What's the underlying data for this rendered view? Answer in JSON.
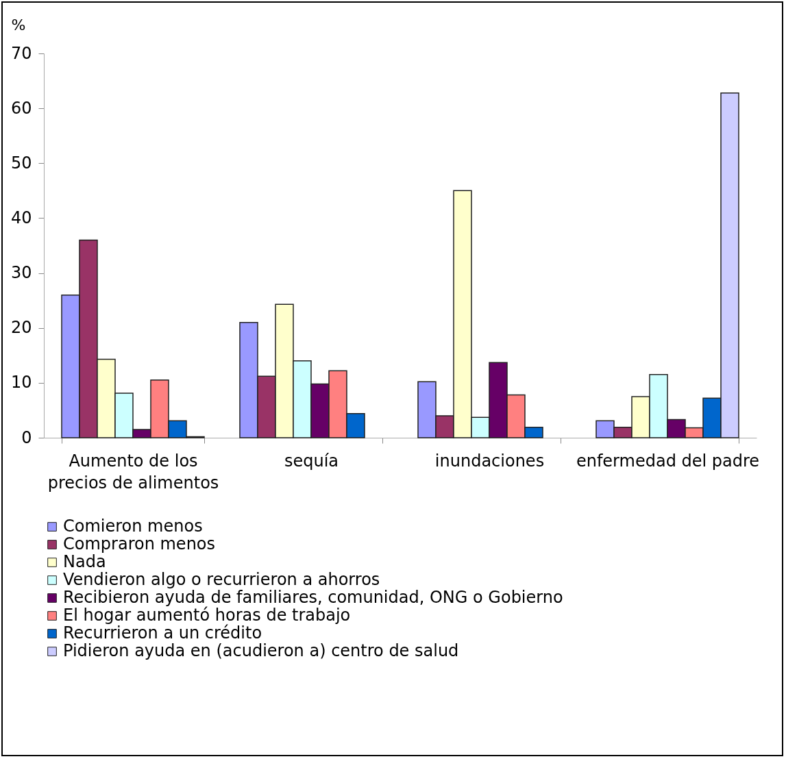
{
  "chart_data": {
    "type": "bar",
    "ylabel": "%",
    "categories": [
      "Aumento de los precios de alimentos",
      "sequía",
      "inundaciones",
      "enfermedad del padre"
    ],
    "series": [
      {
        "name": "Comieron menos",
        "color": "#9999ff",
        "values": [
          26,
          21,
          10.2,
          3.1
        ]
      },
      {
        "name": "Compraron menos",
        "color": "#993366",
        "values": [
          36,
          11.2,
          4,
          1.9
        ]
      },
      {
        "name": "Nada",
        "color": "#ffffcc",
        "values": [
          14.3,
          24.3,
          45,
          7.5
        ]
      },
      {
        "name": "Vendieron algo o recurrieron a ahorros",
        "color": "#ccffff",
        "values": [
          8.1,
          14,
          3.7,
          11.5
        ]
      },
      {
        "name": "Recibieron ayuda de familiares, comunidad, ONG o Gobierno",
        "color": "#660066",
        "values": [
          1.5,
          9.8,
          13.7,
          3.3
        ]
      },
      {
        "name": "El hogar aumentó horas de trabajo",
        "color": "#ff8080",
        "values": [
          10.5,
          12.2,
          7.8,
          1.8
        ]
      },
      {
        "name": "Recurrieron a un crédito",
        "color": "#0066cc",
        "values": [
          3.1,
          4.4,
          1.9,
          7.2
        ]
      },
      {
        "name": "Pidieron ayuda en (acudieron a) centro de salud",
        "color": "#ccccff",
        "values": [
          0.2,
          null,
          null,
          62.8
        ]
      }
    ],
    "ylim": [
      0,
      70
    ],
    "yticks": [
      0,
      10,
      20,
      30,
      40,
      50,
      60,
      70
    ],
    "grid": false,
    "legend": "bottom"
  }
}
